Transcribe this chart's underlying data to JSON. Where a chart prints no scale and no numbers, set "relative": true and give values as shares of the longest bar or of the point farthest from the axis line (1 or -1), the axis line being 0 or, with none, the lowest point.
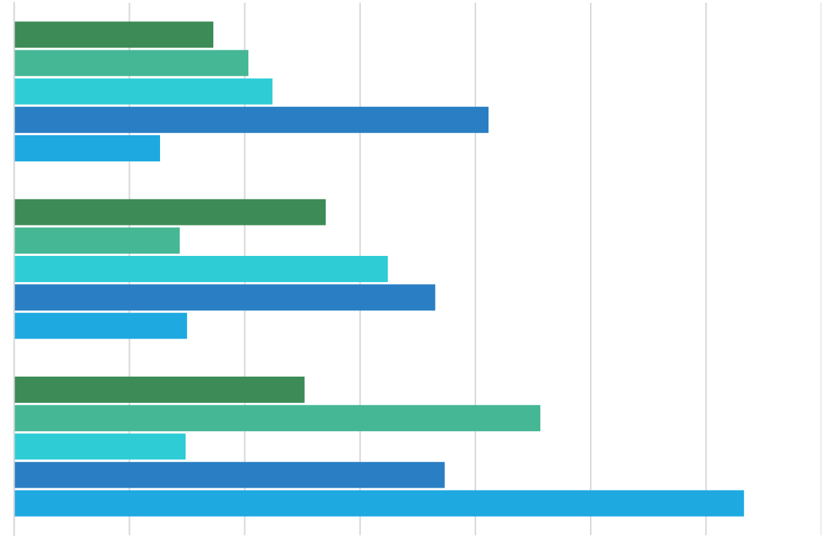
{
  "chart_data": {
    "type": "bar",
    "orientation": "horizontal",
    "relative": true,
    "grid": "x",
    "categories": [
      null,
      null,
      null
    ],
    "series": [
      {
        "color": "#3d8b57",
        "values": [
          0.273,
          0.427,
          0.398
        ]
      },
      {
        "color": "#45b795",
        "values": [
          0.321,
          0.227,
          0.721
        ]
      },
      {
        "color": "#2ecdd6",
        "values": [
          0.354,
          0.512,
          0.235
        ]
      },
      {
        "color": "#2a7fc4",
        "values": [
          0.65,
          0.577,
          0.59
        ]
      },
      {
        "color": "#1fa9e1",
        "values": [
          0.2,
          0.237,
          1
        ]
      }
    ]
  }
}
